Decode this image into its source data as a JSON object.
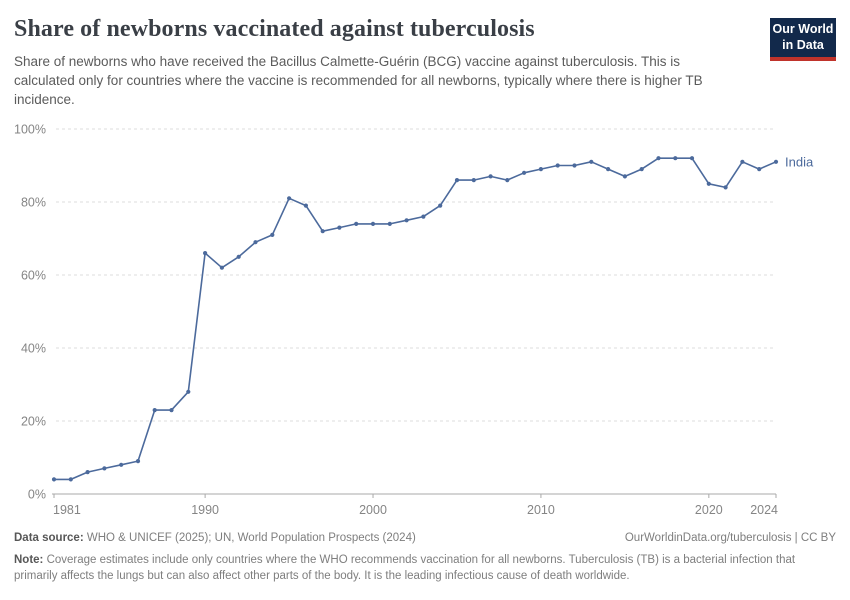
{
  "header": {
    "title": "Share of newborns vaccinated against tuberculosis",
    "subtitle": "Share of newborns who have received the Bacillus Calmette-Guérin (BCG) vaccine against tuberculosis. This is calculated only for countries where the vaccine is recommended for all newborns, typically where there is higher TB incidence.",
    "logo": {
      "line1": "Our World",
      "line2": "in Data",
      "bg_color": "#12294B",
      "bar_color": "#C0332B"
    }
  },
  "chart_data": {
    "type": "line",
    "title": "Share of newborns vaccinated against tuberculosis",
    "xlabel": "",
    "ylabel": "",
    "xlim": [
      1981,
      2024
    ],
    "ylim": [
      0,
      100
    ],
    "x_ticks": [
      1981,
      1990,
      2000,
      2010,
      2020,
      2024
    ],
    "y_ticks": [
      0,
      20,
      40,
      60,
      80,
      100
    ],
    "y_tick_suffix": "%",
    "grid": "horizontal-dashed",
    "legend_position": "end-of-line-label",
    "series": [
      {
        "name": "India",
        "color": "#4C6A9C",
        "x": [
          1981,
          1982,
          1983,
          1984,
          1985,
          1986,
          1987,
          1988,
          1989,
          1990,
          1991,
          1992,
          1993,
          1994,
          1995,
          1996,
          1997,
          1998,
          1999,
          2000,
          2001,
          2002,
          2003,
          2004,
          2005,
          2006,
          2007,
          2008,
          2009,
          2010,
          2011,
          2012,
          2013,
          2014,
          2015,
          2016,
          2017,
          2018,
          2019,
          2020,
          2021,
          2022,
          2023,
          2024
        ],
        "values": [
          4,
          4,
          6,
          7,
          8,
          9,
          23,
          23,
          28,
          66,
          62,
          65,
          69,
          71,
          81,
          79,
          72,
          73,
          74,
          74,
          74,
          75,
          76,
          79,
          86,
          86,
          87,
          86,
          88,
          89,
          90,
          90,
          91,
          89,
          87,
          89,
          92,
          92,
          92,
          85,
          84,
          91,
          89,
          91
        ]
      }
    ],
    "theme": {
      "grid_color": "#dedede",
      "axis_color": "#a9a9a9",
      "tick_label_color": "#858585",
      "tick_label_size": 12.5,
      "end_label_size": 13
    }
  },
  "footer": {
    "datasource_label": "Data source:",
    "datasource_text": " WHO & UNICEF (2025); UN, World Population Prospects (2024)",
    "rights": "OurWorldinData.org/tuberculosis | CC BY",
    "note_label": "Note:",
    "note_text": " Coverage estimates include only countries where the WHO recommends vaccination for all newborns. Tuberculosis (TB) is a bacterial infection that primarily affects the lungs but can also affect other parts of the body. It is the leading infectious cause of death worldwide."
  }
}
